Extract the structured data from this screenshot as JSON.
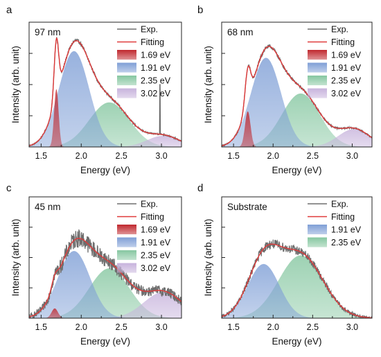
{
  "figure": {
    "panel_letters": [
      "a",
      "b",
      "c",
      "d"
    ]
  },
  "chart_data": [
    {
      "panel": "a",
      "type": "area",
      "annotation": "97 nm",
      "xlabel": "Energy (eV)",
      "ylabel": "Intensity (arb. unit)",
      "xlim": [
        1.35,
        3.25
      ],
      "ylim": [
        0,
        1.12
      ],
      "xticks": [
        "1.5",
        "2.0",
        "2.5",
        "3.0"
      ],
      "xtick_values": [
        1.5,
        2.0,
        2.5,
        3.0
      ],
      "legend_position": "top-right",
      "exp": {
        "name": "Exp.",
        "color": "#6e6e6e",
        "noise": 0.012,
        "spike": {
          "x": 2.98,
          "y": 0.56
        }
      },
      "fit": {
        "name": "Fitting",
        "color": "#e03a3a"
      },
      "components": [
        {
          "name": "1.69 eV",
          "center": 1.69,
          "height": 0.52,
          "width": 0.028,
          "color": "#c0282e"
        },
        {
          "name": "1.91 eV",
          "center": 1.91,
          "height": 0.86,
          "width": 0.19,
          "color": "#7f9fd6"
        },
        {
          "name": "2.35 eV",
          "center": 2.35,
          "height": 0.4,
          "width": 0.25,
          "color": "#86c7a1"
        },
        {
          "name": "3.02 eV",
          "center": 3.02,
          "height": 0.1,
          "width": 0.2,
          "color": "#c7b3dc"
        }
      ]
    },
    {
      "panel": "b",
      "type": "area",
      "annotation": "68 nm",
      "xlabel": "Energy (eV)",
      "ylabel": "Intensity (arb. unit)",
      "xlim": [
        1.35,
        3.25
      ],
      "ylim": [
        0,
        1.12
      ],
      "xticks": [
        "1.5",
        "2.0",
        "2.5",
        "3.0"
      ],
      "xtick_values": [
        1.5,
        2.0,
        2.5,
        3.0
      ],
      "legend_position": "top-right",
      "exp": {
        "name": "Exp.",
        "color": "#6e6e6e",
        "noise": 0.012
      },
      "fit": {
        "name": "Fitting",
        "color": "#e03a3a"
      },
      "components": [
        {
          "name": "1.69 eV",
          "center": 1.68,
          "height": 0.32,
          "width": 0.035,
          "color": "#c0282e"
        },
        {
          "name": "1.91 eV",
          "center": 1.91,
          "height": 0.8,
          "width": 0.19,
          "color": "#7f9fd6"
        },
        {
          "name": "2.35 eV",
          "center": 2.35,
          "height": 0.48,
          "width": 0.24,
          "color": "#86c7a1"
        },
        {
          "name": "3.02 eV",
          "center": 3.02,
          "height": 0.16,
          "width": 0.2,
          "color": "#c7b3dc"
        }
      ]
    },
    {
      "panel": "c",
      "type": "area",
      "annotation": "45 nm",
      "xlabel": "Energy (eV)",
      "ylabel": "Intensity (arb. unit)",
      "xlim": [
        1.35,
        3.25
      ],
      "ylim": [
        0,
        1.12
      ],
      "xticks": [
        "1.5",
        "2.0",
        "2.5",
        "3.0"
      ],
      "xtick_values": [
        1.5,
        2.0,
        2.5,
        3.0
      ],
      "legend_position": "top-right",
      "exp": {
        "name": "Exp.",
        "color": "#6e6e6e",
        "noise": 0.075
      },
      "fit": {
        "name": "Fitting",
        "color": "#e03a3a"
      },
      "components": [
        {
          "name": "1.69 eV",
          "center": 1.67,
          "height": 0.09,
          "width": 0.04,
          "color": "#c0282e"
        },
        {
          "name": "1.91 eV",
          "center": 1.91,
          "height": 0.62,
          "width": 0.2,
          "color": "#7f9fd6"
        },
        {
          "name": "2.35 eV",
          "center": 2.35,
          "height": 0.46,
          "width": 0.25,
          "color": "#86c7a1"
        },
        {
          "name": "3.02 eV",
          "center": 3.02,
          "height": 0.24,
          "width": 0.24,
          "color": "#c7b3dc"
        }
      ]
    },
    {
      "panel": "d",
      "type": "area",
      "annotation": "Substrate",
      "xlabel": "Energy (eV)",
      "ylabel": "Intensity (arb. unit)",
      "xlim": [
        1.35,
        3.25
      ],
      "ylim": [
        0,
        1.12
      ],
      "xticks": [
        "1.5",
        "2.0",
        "2.5",
        "3.0"
      ],
      "xtick_values": [
        1.5,
        2.0,
        2.5,
        3.0
      ],
      "legend_position": "top-right",
      "exp": {
        "name": "Exp.",
        "color": "#6e6e6e",
        "noise": 0.04
      },
      "fit": {
        "name": "Fitting",
        "color": "#e03a3a"
      },
      "components": [
        {
          "name": "1.91 eV",
          "center": 1.88,
          "height": 0.5,
          "width": 0.2,
          "color": "#7f9fd6"
        },
        {
          "name": "2.35 eV",
          "center": 2.35,
          "height": 0.58,
          "width": 0.28,
          "color": "#86c7a1"
        }
      ]
    }
  ]
}
